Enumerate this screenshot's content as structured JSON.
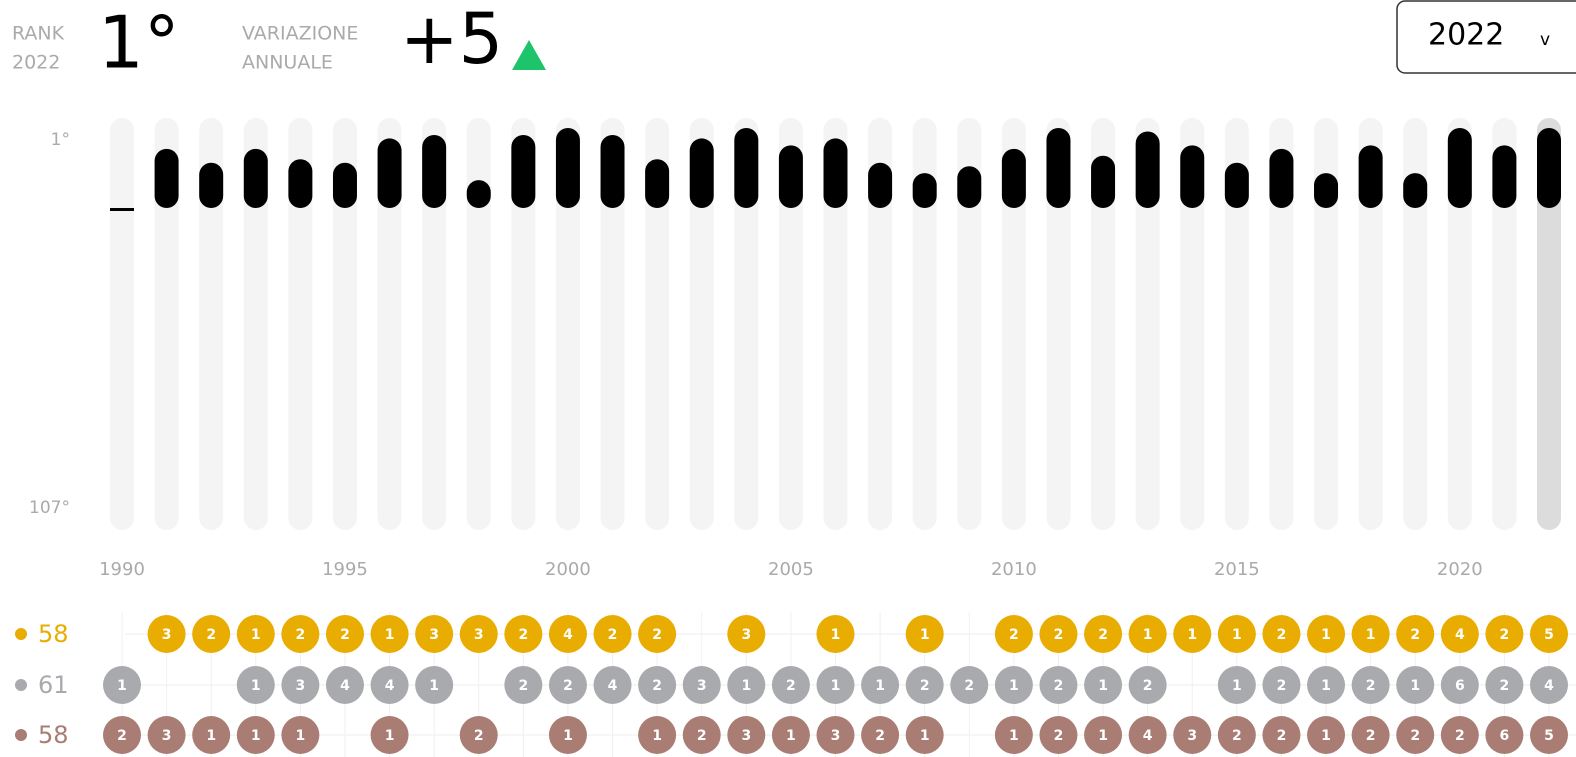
{
  "header": {
    "rank_label": "RANK",
    "rank_year": "2022",
    "rank": "1°",
    "change_label_1": "VARIAZIONE",
    "change_label_2": "ANNUALE",
    "change": "+5",
    "selector": "2022",
    "selector_arrow": "v"
  },
  "chart_data": {
    "type": "bar",
    "x": [
      1990,
      1991,
      1992,
      1993,
      1994,
      1995,
      1996,
      1997,
      1998,
      1999,
      2000,
      2001,
      2002,
      2003,
      2004,
      2005,
      2006,
      2007,
      2008,
      2009,
      2010,
      2011,
      2012,
      2013,
      2014,
      2015,
      2016,
      2017,
      2018,
      2019,
      2020,
      2021,
      2022
    ],
    "values": [
      null,
      7,
      11,
      7,
      10,
      11,
      4,
      3,
      16,
      3,
      1,
      3,
      10,
      4,
      1,
      6,
      4,
      11,
      14,
      12,
      7,
      1,
      9,
      2,
      6,
      11,
      7,
      14,
      6,
      14,
      1,
      6,
      1
    ],
    "color": "#000000",
    "xlim": [
      1990,
      2022
    ],
    "xticks": [
      1990,
      1995,
      2000,
      2005,
      2010,
      2015,
      2020
    ],
    "ylim": [
      1,
      107
    ],
    "yticks": [
      {
        "value": 1,
        "label": "1°"
      },
      {
        "value": 107,
        "label": "107°"
      }
    ],
    "selected": 2022
  },
  "medals": {
    "type": "dots",
    "series": [
      {
        "name": "58",
        "color": "#e8ad00",
        "values": [
          null,
          3,
          2,
          1,
          2,
          2,
          1,
          3,
          3,
          2,
          4,
          2,
          2,
          null,
          3,
          null,
          1,
          null,
          1,
          null,
          2,
          2,
          2,
          1,
          1,
          1,
          2,
          1,
          1,
          2,
          4,
          2,
          5
        ]
      },
      {
        "name": "61",
        "color": "#a8aaad",
        "values": [
          1,
          null,
          null,
          1,
          3,
          4,
          4,
          1,
          null,
          2,
          2,
          4,
          2,
          3,
          1,
          2,
          1,
          1,
          2,
          2,
          1,
          2,
          1,
          2,
          null,
          1,
          2,
          1,
          2,
          1,
          6,
          2,
          4
        ]
      },
      {
        "name": "58",
        "color": "#a97d74",
        "values": [
          2,
          3,
          1,
          1,
          1,
          null,
          1,
          null,
          2,
          null,
          1,
          null,
          1,
          2,
          3,
          1,
          3,
          2,
          1,
          null,
          1,
          2,
          1,
          4,
          3,
          2,
          2,
          1,
          2,
          2,
          2,
          6,
          5
        ]
      }
    ]
  }
}
